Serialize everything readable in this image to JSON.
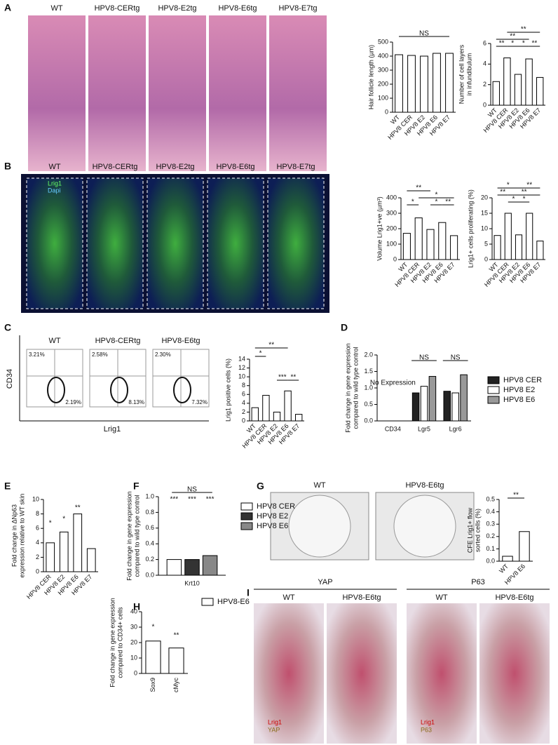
{
  "figure": {
    "panels": [
      "A",
      "B",
      "C",
      "D",
      "E",
      "F",
      "G",
      "H",
      "I"
    ],
    "a_labels": [
      "WT",
      "HPV8-CERtg",
      "HPV8-E2tg",
      "HPV8-E6tg",
      "HPV8-E7tg"
    ],
    "b_labels": [
      "WT",
      "HPV8-CERtg",
      "HPV8-E2tg",
      "HPV8-E6tg",
      "HPV8-E7tg"
    ],
    "b_stain": [
      "Lrig1",
      "Dapi"
    ],
    "c_flow": [
      {
        "label": "WT",
        "upper": "3.21%",
        "lower": "2.19%"
      },
      {
        "label": "HPV8-CERtg",
        "upper": "2.58%",
        "lower": "8.13%"
      },
      {
        "label": "HPV8-E6tg",
        "upper": "2.30%",
        "lower": "7.32%"
      }
    ],
    "c_axes": [
      "CD34",
      "Lrig1"
    ],
    "g_labels": [
      "WT",
      "HPV8-E6tg"
    ],
    "i_groups": [
      {
        "title": "YAP",
        "labels": [
          "WT",
          "HPV8-E6tg"
        ],
        "stain": [
          "Lrig1",
          "YAP"
        ]
      },
      {
        "title": "P63",
        "labels": [
          "WT",
          "HPV8-E6tg"
        ],
        "stain": [
          "Lrig1",
          "P63"
        ]
      }
    ]
  },
  "chart_data": [
    {
      "type": "bar",
      "y_label": [
        "Hair follicle length (µm)"
      ],
      "categories": [
        "WT",
        "HPV8 CER",
        "HPV8 E2",
        "HPV8 E6",
        "HPV8 E7"
      ],
      "values": [
        410,
        405,
        400,
        420,
        420
      ],
      "color": "#ffffff",
      "ylim": [
        0,
        500
      ],
      "yticks": [
        0,
        100,
        200,
        300,
        400,
        500
      ],
      "annotations": [
        "NS"
      ]
    },
    {
      "type": "bar",
      "y_label": [
        "Number of cell layers",
        "in infundibulum"
      ],
      "categories": [
        "WT",
        "HPV8 CER",
        "HPV8 E2",
        "HPV8 E6",
        "HPV8 E7"
      ],
      "values": [
        2.3,
        4.6,
        3.0,
        4.5,
        2.7
      ],
      "color": "#ffffff",
      "ylim": [
        0,
        6
      ],
      "yticks": [
        0,
        2,
        4,
        6
      ],
      "annotations": [
        "**",
        "**",
        "**",
        "*",
        "*",
        "**"
      ]
    },
    {
      "type": "bar",
      "y_label": [
        "Volume Lrig1+ve (µm³)"
      ],
      "categories": [
        "WT",
        "HPV8 CER",
        "HPV8 E2",
        "HPV8 E6",
        "HPV8 E7"
      ],
      "values": [
        170,
        270,
        195,
        240,
        155
      ],
      "color": "#ffffff",
      "ylim": [
        0,
        400
      ],
      "yticks": [
        0,
        100,
        200,
        300,
        400
      ],
      "annotations": [
        "**",
        "*",
        "*",
        "*",
        "**"
      ]
    },
    {
      "type": "bar",
      "y_label": [
        "Lrig1+ cells proliferating (%)"
      ],
      "categories": [
        "WT",
        "HPV8 CER",
        "HPV8 E2",
        "HPV8 E6",
        "HPV8 E7"
      ],
      "values": [
        7.8,
        15,
        8,
        15,
        6
      ],
      "color": "#ffffff",
      "ylim": [
        0,
        20
      ],
      "yticks": [
        0,
        5,
        10,
        15,
        20
      ],
      "annotations": [
        "*",
        "**",
        "**",
        "**",
        "*",
        "*"
      ]
    },
    {
      "type": "bar",
      "y_label": [
        "Lrig1 positive cells (%)"
      ],
      "categories": [
        "WT",
        "HPV8 CER",
        "HPV8 E2",
        "HPV8 E6",
        "HPV8 E7"
      ],
      "values": [
        3,
        5.8,
        2,
        6.8,
        1.5
      ],
      "color": "#ffffff",
      "ylim": [
        0,
        14
      ],
      "yticks": [
        0,
        2,
        4,
        6,
        8,
        10,
        12,
        14
      ],
      "annotations": [
        "**",
        "*",
        "***",
        "**"
      ]
    },
    {
      "type": "grouped_bar",
      "y_label": [
        "Fold change in gene expression",
        "compared to wild type control"
      ],
      "categories": [
        "CD34",
        "Lgr5",
        "Lgr6"
      ],
      "series": [
        {
          "name": "HPV8 CER",
          "color": "#222222",
          "values": [
            null,
            0.85,
            0.9
          ]
        },
        {
          "name": "HPV8 E2",
          "color": "#ffffff",
          "values": [
            null,
            1.05,
            0.85
          ]
        },
        {
          "name": "HPV8 E6",
          "color": "#999999",
          "values": [
            null,
            1.35,
            1.4
          ]
        }
      ],
      "ylim": [
        0,
        2
      ],
      "yticks": [
        {
          "value": 0,
          "label": "0.0"
        },
        {
          "value": 0.5,
          "label": "0.5"
        },
        {
          "value": 1,
          "label": "1.0"
        },
        {
          "value": 1.5,
          "label": "1.5"
        },
        {
          "value": 2,
          "label": "2.0"
        }
      ],
      "annotations": [
        "No Expression",
        "NS",
        "NS"
      ]
    },
    {
      "type": "bar",
      "y_label": [
        "Fold change in ΔNp63",
        "expression relative to WT skin"
      ],
      "categories": [
        "HPV8 CER",
        "HPV8 E2",
        "HPV8 E6",
        "HPV8 E7"
      ],
      "values": [
        4,
        5.5,
        8,
        3.2
      ],
      "color": "#ffffff",
      "ylim": [
        0,
        10
      ],
      "yticks": [
        0,
        2,
        4,
        6,
        8,
        10
      ],
      "annotations": [
        "*",
        "*",
        "**"
      ]
    },
    {
      "type": "grouped_bar",
      "y_label": [
        "Fold change in gene expression",
        "compared to wild type control"
      ],
      "categories": [
        "Krt10"
      ],
      "series": [
        {
          "name": "HPV8 CER",
          "color": "#ffffff",
          "values": [
            0.2
          ]
        },
        {
          "name": "HPV8 E2",
          "color": "#333333",
          "values": [
            0.2
          ]
        },
        {
          "name": "HPV8 E6",
          "color": "#888888",
          "values": [
            0.25
          ]
        }
      ],
      "ylim": [
        0,
        1
      ],
      "yticks": [
        {
          "value": 0,
          "label": "0.0"
        },
        {
          "value": 0.2,
          "label": "0.2"
        },
        {
          "value": 0.4,
          "label": "0.4"
        },
        {
          "value": 0.6,
          "label": "0.6"
        },
        {
          "value": 0.8,
          "label": "0.8"
        },
        {
          "value": 1,
          "label": "1.0"
        }
      ],
      "annotations": [
        "NS",
        "***",
        "***",
        "***"
      ]
    },
    {
      "type": "bar",
      "y_label": [
        "CFE Lrig1+ flow",
        "sorted cells (%)"
      ],
      "categories": [
        "WT",
        "HPV8 E6"
      ],
      "values": [
        0.04,
        0.24
      ],
      "color": "#ffffff",
      "ylim": [
        0,
        0.5
      ],
      "yticks": [
        {
          "value": 0,
          "label": "0.0"
        },
        {
          "value": 0.1,
          "label": "0.1"
        },
        {
          "value": 0.2,
          "label": "0.2"
        },
        {
          "value": 0.3,
          "label": "0.3"
        },
        {
          "value": 0.4,
          "label": "0.4"
        },
        {
          "value": 0.5,
          "label": "0.5"
        }
      ],
      "annotations": [
        "**"
      ]
    },
    {
      "type": "grouped_bar",
      "y_label": [
        "Fold change in gene expression",
        "compared to CD34+ cells"
      ],
      "categories": [
        "Sox9",
        "cMyc"
      ],
      "series": [
        {
          "name": "HPV8-E6",
          "color": "#ffffff",
          "values": [
            21,
            16.5
          ]
        }
      ],
      "ylim": [
        0,
        40
      ],
      "yticks": [
        0,
        10,
        20,
        30,
        40
      ],
      "annotations": [
        "*",
        "**"
      ]
    }
  ]
}
